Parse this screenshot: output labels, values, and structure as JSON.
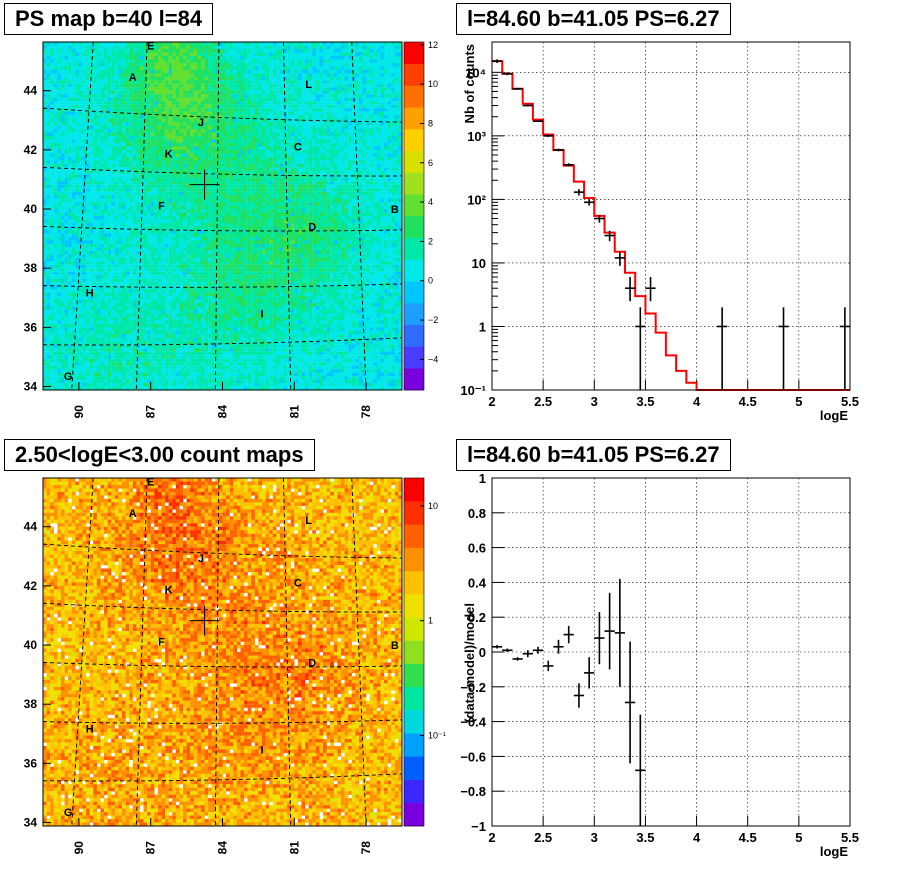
{
  "panels": {
    "ps_map_title": "PS map b=40 l=84",
    "count_map_title": "2.50<logE<3.00 count maps",
    "spectrum_title": "l=84.60 b=41.05 PS=6.27",
    "residual_title": "l=84.60 b=41.05 PS=6.27"
  },
  "maps": {
    "b_labels": [
      "44",
      "42",
      "40",
      "38",
      "36",
      "34"
    ],
    "l_labels": [
      "90",
      "87",
      "84",
      "81",
      "78"
    ],
    "source_labels": [
      "E",
      "A",
      "L",
      "J",
      "K",
      "C",
      "F",
      "B",
      "D",
      "H",
      "I",
      "G"
    ],
    "ps_colorbar_labels": [
      "12",
      "10",
      "8",
      "6",
      "4",
      "2",
      "0",
      "−2",
      "−4"
    ],
    "count_colorbar_labels": [
      "10",
      "1",
      "10⁻¹"
    ],
    "ps_palette": [
      "#7a00e0",
      "#4a3cff",
      "#2f6cff",
      "#1e9fff",
      "#00c8ff",
      "#00e8e8",
      "#00e8a8",
      "#20e060",
      "#60e030",
      "#a0e020",
      "#d8e000",
      "#ffd000",
      "#ffa000",
      "#ff7000",
      "#ff4000",
      "#ff0000"
    ],
    "count_palette": [
      "#7a00e0",
      "#3c28ff",
      "#0060ff",
      "#00a0ff",
      "#00d8e0",
      "#00e8a0",
      "#30e050",
      "#90e020",
      "#d0e800",
      "#f0e000",
      "#ffc000",
      "#ff9000",
      "#ff6000",
      "#ff3000",
      "#ff0000"
    ]
  },
  "chart_data": [
    {
      "type": "line",
      "title": "l=84.60 b=41.05 PS=6.27",
      "xlabel": "logE",
      "ylabel": "Nb of counts",
      "xlim": [
        2,
        5.5
      ],
      "ylim": [
        0.1,
        30000
      ],
      "yscale": "log",
      "x_ticks": [
        "2",
        "2.5",
        "3",
        "3.5",
        "4",
        "4.5",
        "5",
        "5.5"
      ],
      "y_ticks": [
        "10⁻¹",
        "1",
        "10",
        "10²",
        "10³",
        "10⁴"
      ],
      "grid": true,
      "series": [
        {
          "kind": "errorbar",
          "color": "#000000",
          "x": [
            2.05,
            2.15,
            2.25,
            2.35,
            2.45,
            2.55,
            2.65,
            2.75,
            2.85,
            2.95,
            3.05,
            3.15,
            3.25,
            3.35,
            3.45,
            3.55,
            4.25,
            4.85,
            5.45
          ],
          "y": [
            15000,
            9500,
            5500,
            3000,
            1700,
            1000,
            600,
            350,
            130,
            90,
            50,
            27,
            12,
            4,
            1,
            4,
            1,
            1,
            1
          ],
          "y_low": [
            14000,
            9000,
            5300,
            2900,
            1650,
            960,
            570,
            330,
            115,
            80,
            43,
            22,
            9,
            2.5,
            0.1,
            2.5,
            0.1,
            0.1,
            0.1
          ],
          "y_high": [
            16000,
            10000,
            5700,
            3100,
            1750,
            1040,
            630,
            370,
            145,
            100,
            57,
            32,
            15,
            6,
            2,
            6,
            2,
            2,
            2
          ]
        },
        {
          "kind": "step",
          "name": "model",
          "color": "#ff0000",
          "edges": [
            2.0,
            2.1,
            2.2,
            2.3,
            2.4,
            2.5,
            2.6,
            2.7,
            2.8,
            2.9,
            3.0,
            3.1,
            3.2,
            3.3,
            3.4,
            3.5,
            3.6,
            3.7,
            3.8,
            3.9,
            4.0,
            5.5
          ],
          "values": [
            15000,
            9500,
            5500,
            3200,
            1800,
            1050,
            600,
            340,
            190,
            105,
            55,
            30,
            15,
            7,
            3,
            1.6,
            0.8,
            0.35,
            0.2,
            0.13,
            0.1
          ]
        }
      ]
    },
    {
      "type": "scatter",
      "title": "l=84.60 b=41.05 PS=6.27",
      "xlabel": "logE",
      "ylabel": "(data-model)/model",
      "xlim": [
        2,
        5.5
      ],
      "ylim": [
        -1,
        1
      ],
      "x_ticks": [
        "2",
        "2.5",
        "3",
        "3.5",
        "4",
        "4.5",
        "5",
        "5.5"
      ],
      "y_ticks": [
        "−1",
        "−0.8",
        "−0.6",
        "−0.4",
        "−0.2",
        "0",
        "0.2",
        "0.4",
        "0.6",
        "0.8",
        "1"
      ],
      "grid": true,
      "series": [
        {
          "kind": "errorbar",
          "color": "#000000",
          "x": [
            2.05,
            2.15,
            2.25,
            2.35,
            2.45,
            2.55,
            2.65,
            2.75,
            2.85,
            2.95,
            3.05,
            3.15,
            3.25,
            3.35,
            3.45
          ],
          "y": [
            0.03,
            0.01,
            -0.04,
            -0.01,
            0.01,
            -0.08,
            0.03,
            0.1,
            -0.25,
            -0.12,
            0.08,
            0.12,
            0.11,
            -0.29,
            -0.68
          ],
          "y_err": [
            0.01,
            0.01,
            0.01,
            0.02,
            0.02,
            0.03,
            0.04,
            0.05,
            0.07,
            0.09,
            0.15,
            0.22,
            0.31,
            0.35,
            0.32
          ]
        }
      ]
    }
  ]
}
